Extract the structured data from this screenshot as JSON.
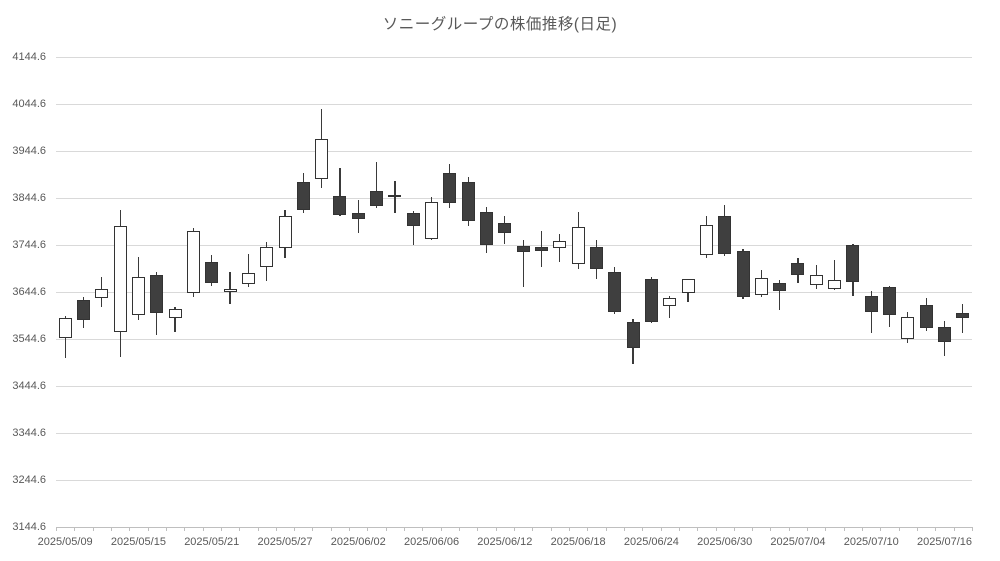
{
  "chart_data": {
    "type": "candlestick",
    "title": "ソニーグループの株価推移(日足)",
    "grid": true,
    "legend": "none",
    "y_axis": {
      "min": 3144.6,
      "max": 4144.6,
      "step": 100,
      "tick_labels": [
        "4144.6",
        "4044.6",
        "3944.6",
        "3844.6",
        "3744.6",
        "3644.6",
        "3544.6",
        "3444.6",
        "3344.6",
        "3244.6",
        "3144.6"
      ]
    },
    "x_axis": {
      "label_interval": 4,
      "tick_labels": [
        "2025/05/09",
        "2025/05/15",
        "2025/05/21",
        "2025/05/27",
        "2025/06/02",
        "2025/06/06",
        "2025/06/12",
        "2025/06/18",
        "2025/06/24",
        "2025/06/30",
        "2025/07/04",
        "2025/07/10",
        "2025/07/16"
      ]
    },
    "candles": [
      {
        "date": "2025/05/09",
        "open": 3546,
        "high": 3593,
        "low": 3504,
        "close": 3589
      },
      {
        "date": "2025/05/12",
        "open": 3628,
        "high": 3633,
        "low": 3567,
        "close": 3585
      },
      {
        "date": "2025/05/13",
        "open": 3631,
        "high": 3677,
        "low": 3613,
        "close": 3650
      },
      {
        "date": "2025/05/14",
        "open": 3560,
        "high": 3819,
        "low": 3506,
        "close": 3784
      },
      {
        "date": "2025/05/15",
        "open": 3596,
        "high": 3720,
        "low": 3585,
        "close": 3677
      },
      {
        "date": "2025/05/16",
        "open": 3681,
        "high": 3687,
        "low": 3553,
        "close": 3599
      },
      {
        "date": "2025/05/19",
        "open": 3590,
        "high": 3613,
        "low": 3560,
        "close": 3608
      },
      {
        "date": "2025/05/20",
        "open": 3642,
        "high": 3780,
        "low": 3635,
        "close": 3774
      },
      {
        "date": "2025/05/21",
        "open": 3709,
        "high": 3723,
        "low": 3658,
        "close": 3663
      },
      {
        "date": "2025/05/22",
        "open": 3645,
        "high": 3688,
        "low": 3620,
        "close": 3652
      },
      {
        "date": "2025/05/23",
        "open": 3662,
        "high": 3725,
        "low": 3656,
        "close": 3684
      },
      {
        "date": "2025/05/26",
        "open": 3697,
        "high": 3752,
        "low": 3667,
        "close": 3740
      },
      {
        "date": "2025/05/27",
        "open": 3738,
        "high": 3819,
        "low": 3716,
        "close": 3806
      },
      {
        "date": "2025/05/28",
        "open": 3879,
        "high": 3898,
        "low": 3813,
        "close": 3819
      },
      {
        "date": "2025/05/29",
        "open": 3884,
        "high": 4035,
        "low": 3866,
        "close": 3971
      },
      {
        "date": "2025/05/30",
        "open": 3848,
        "high": 3908,
        "low": 3806,
        "close": 3809
      },
      {
        "date": "2025/06/02",
        "open": 3813,
        "high": 3841,
        "low": 3770,
        "close": 3799
      },
      {
        "date": "2025/06/03",
        "open": 3859,
        "high": 3922,
        "low": 3823,
        "close": 3827
      },
      {
        "date": "2025/06/04",
        "open": 3849,
        "high": 3880,
        "low": 3813,
        "close": 3851
      },
      {
        "date": "2025/06/05",
        "open": 3812,
        "high": 3817,
        "low": 3745,
        "close": 3785
      },
      {
        "date": "2025/06/06",
        "open": 3757,
        "high": 3846,
        "low": 3755,
        "close": 3837
      },
      {
        "date": "2025/06/09",
        "open": 3898,
        "high": 3918,
        "low": 3823,
        "close": 3833
      },
      {
        "date": "2025/06/10",
        "open": 3879,
        "high": 3890,
        "low": 3785,
        "close": 3796
      },
      {
        "date": "2025/06/11",
        "open": 3815,
        "high": 3826,
        "low": 3727,
        "close": 3745
      },
      {
        "date": "2025/06/12",
        "open": 3791,
        "high": 3807,
        "low": 3746,
        "close": 3770
      },
      {
        "date": "2025/06/13",
        "open": 3743,
        "high": 3755,
        "low": 3655,
        "close": 3729
      },
      {
        "date": "2025/06/16",
        "open": 3740,
        "high": 3775,
        "low": 3697,
        "close": 3732
      },
      {
        "date": "2025/06/17",
        "open": 3739,
        "high": 3768,
        "low": 3708,
        "close": 3753
      },
      {
        "date": "2025/06/18",
        "open": 3705,
        "high": 3814,
        "low": 3694,
        "close": 3782
      },
      {
        "date": "2025/06/19",
        "open": 3740,
        "high": 3756,
        "low": 3672,
        "close": 3694
      },
      {
        "date": "2025/06/20",
        "open": 3687,
        "high": 3697,
        "low": 3598,
        "close": 3602
      },
      {
        "date": "2025/06/23",
        "open": 3580,
        "high": 3587,
        "low": 3491,
        "close": 3526
      },
      {
        "date": "2025/06/24",
        "open": 3672,
        "high": 3677,
        "low": 3578,
        "close": 3581
      },
      {
        "date": "2025/06/25",
        "open": 3614,
        "high": 3636,
        "low": 3590,
        "close": 3631
      },
      {
        "date": "2025/06/26",
        "open": 3643,
        "high": 3673,
        "low": 3623,
        "close": 3672
      },
      {
        "date": "2025/06/27",
        "open": 3724,
        "high": 3806,
        "low": 3718,
        "close": 3788
      },
      {
        "date": "2025/06/30",
        "open": 3806,
        "high": 3830,
        "low": 3722,
        "close": 3725
      },
      {
        "date": "2025/07/01",
        "open": 3731,
        "high": 3737,
        "low": 3630,
        "close": 3633
      },
      {
        "date": "2025/07/02",
        "open": 3639,
        "high": 3692,
        "low": 3633,
        "close": 3674
      },
      {
        "date": "2025/07/03",
        "open": 3664,
        "high": 3671,
        "low": 3607,
        "close": 3647
      },
      {
        "date": "2025/07/04",
        "open": 3706,
        "high": 3717,
        "low": 3664,
        "close": 3681
      },
      {
        "date": "2025/07/07",
        "open": 3660,
        "high": 3703,
        "low": 3650,
        "close": 3681
      },
      {
        "date": "2025/07/08",
        "open": 3651,
        "high": 3713,
        "low": 3648,
        "close": 3671
      },
      {
        "date": "2025/07/09",
        "open": 3745,
        "high": 3747,
        "low": 3636,
        "close": 3666
      },
      {
        "date": "2025/07/10",
        "open": 3636,
        "high": 3647,
        "low": 3558,
        "close": 3601
      },
      {
        "date": "2025/07/11",
        "open": 3655,
        "high": 3657,
        "low": 3570,
        "close": 3595
      },
      {
        "date": "2025/07/14",
        "open": 3545,
        "high": 3603,
        "low": 3537,
        "close": 3591
      },
      {
        "date": "2025/07/15",
        "open": 3616,
        "high": 3632,
        "low": 3561,
        "close": 3567
      },
      {
        "date": "2025/07/16",
        "open": 3570,
        "high": 3582,
        "low": 3509,
        "close": 3538
      },
      {
        "date": "2025/07/17",
        "open": 3600,
        "high": 3620,
        "low": 3558,
        "close": 3590
      }
    ],
    "colors": {
      "up_fill": "#ffffff",
      "down_fill": "#3f3f3f",
      "outline": "#333333",
      "gridline": "#d9d9d9",
      "axis_line": "#bfbfbf",
      "text": "#595959"
    }
  }
}
